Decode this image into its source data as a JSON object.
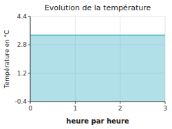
{
  "chart_data": {
    "type": "area",
    "title": "Evolution de la température",
    "xlabel": "heure par heure",
    "ylabel": "Température en °C",
    "x": [
      0,
      3
    ],
    "values": [
      3.35,
      3.35
    ],
    "color": "#55bbcc",
    "xlim": [
      0,
      3
    ],
    "ylim": [
      -0.4,
      4.4
    ],
    "xticks": [
      0,
      1,
      2,
      3
    ],
    "yticks": [
      -0.4,
      1.2,
      2.8,
      4.4
    ],
    "grid": true
  }
}
